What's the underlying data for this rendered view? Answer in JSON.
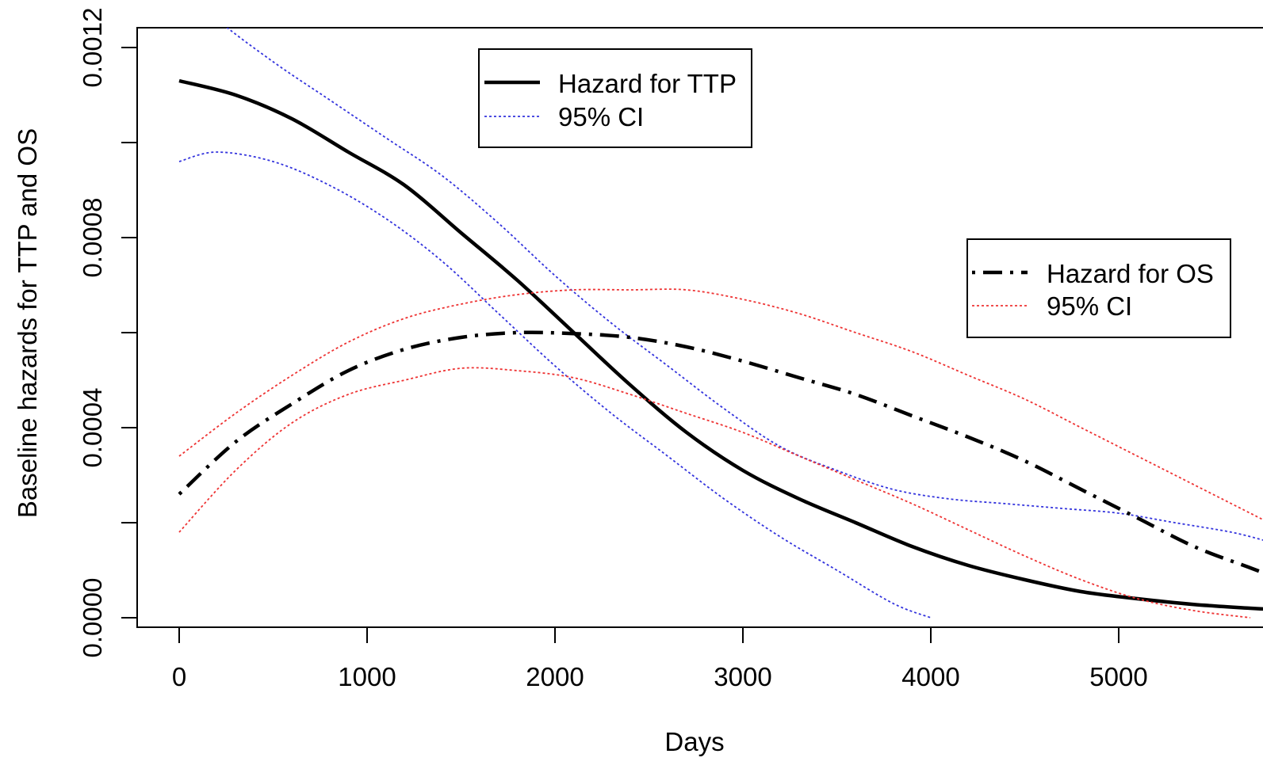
{
  "chart_data": {
    "type": "line",
    "xlabel": "Days",
    "ylabel": "Baseline hazards for TTP and OS",
    "xlim": [
      0,
      5800
    ],
    "ylim": [
      0.0,
      0.00122
    ],
    "x_ticks": [
      0,
      1000,
      2000,
      3000,
      4000,
      5000
    ],
    "x_tick_labels": [
      "0",
      "1000",
      "2000",
      "3000",
      "4000",
      "5000"
    ],
    "y_ticks": [
      0.0,
      0.0002,
      0.0004,
      0.0006,
      0.0008,
      0.001,
      0.0012
    ],
    "y_tick_labels": [
      "0.0000",
      "",
      "0.0004",
      "",
      "0.0008",
      "",
      "0.0012"
    ],
    "grid": false,
    "legends": [
      {
        "placement": "top-center",
        "entries": [
          {
            "label": "Hazard for TTP",
            "color": "#000000",
            "style": "solid"
          },
          {
            "label": "95% CI",
            "color": "#3333dd",
            "style": "dotted"
          }
        ]
      },
      {
        "placement": "right",
        "entries": [
          {
            "label": "Hazard for OS",
            "color": "#000000",
            "style": "dashdot"
          },
          {
            "label": "95% CI",
            "color": "#ee3333",
            "style": "dotted"
          }
        ]
      }
    ],
    "series": [
      {
        "key": "ttp",
        "color": "#000000",
        "style": "solid",
        "x": [
          0,
          300,
          600,
          900,
          1200,
          1500,
          1800,
          2100,
          2400,
          2700,
          3000,
          3300,
          3600,
          3900,
          4200,
          4500,
          4800,
          5100,
          5400,
          5700,
          5800
        ],
        "y": [
          0.00113,
          0.0011,
          0.00105,
          0.00098,
          0.00091,
          0.00081,
          0.00071,
          0.0006,
          0.00049,
          0.00039,
          0.00031,
          0.00025,
          0.0002,
          0.00015,
          0.00011,
          8e-05,
          5.5e-05,
          4e-05,
          2.8e-05,
          2e-05,
          1.8e-05
        ]
      },
      {
        "key": "ttp-ci-upper",
        "color": "#3333dd",
        "style": "dotted",
        "x": [
          0,
          200,
          500,
          800,
          1100,
          1400,
          1700,
          2000,
          2300,
          2600,
          2900,
          3200,
          3500,
          3800,
          4100,
          4400,
          4700,
          5000,
          5300,
          5600,
          5800
        ],
        "y": [
          0.00134,
          0.00126,
          0.00117,
          0.00109,
          0.00101,
          0.00093,
          0.00083,
          0.00072,
          0.00062,
          0.00053,
          0.00044,
          0.00036,
          0.00031,
          0.00027,
          0.00025,
          0.00024,
          0.00023,
          0.00022,
          0.0002,
          0.00018,
          0.00016
        ]
      },
      {
        "key": "ttp-ci-lower",
        "color": "#3333dd",
        "style": "dotted",
        "x": [
          0,
          200,
          500,
          800,
          1100,
          1400,
          1700,
          2000,
          2300,
          2600,
          2900,
          3200,
          3500,
          3800,
          4000
        ],
        "y": [
          0.00096,
          0.00098,
          0.00096,
          0.00091,
          0.00084,
          0.00075,
          0.00064,
          0.00053,
          0.00043,
          0.00034,
          0.00025,
          0.00017,
          0.0001,
          3e-05,
          0.0
        ]
      },
      {
        "key": "os",
        "color": "#000000",
        "style": "dashdot",
        "x": [
          0,
          300,
          600,
          900,
          1200,
          1500,
          1800,
          2100,
          2400,
          2700,
          3000,
          3300,
          3600,
          3900,
          4200,
          4500,
          4800,
          5100,
          5400,
          5700,
          5800
        ],
        "y": [
          0.00026,
          0.00037,
          0.00045,
          0.00052,
          0.000565,
          0.00059,
          0.0006,
          0.000598,
          0.00059,
          0.00057,
          0.00054,
          0.000505,
          0.00047,
          0.000425,
          0.00038,
          0.00033,
          0.00027,
          0.00021,
          0.00015,
          0.000105,
          9e-05
        ]
      },
      {
        "key": "os-ci-upper",
        "color": "#ee3333",
        "style": "dotted",
        "x": [
          0,
          300,
          600,
          900,
          1200,
          1500,
          1800,
          2100,
          2400,
          2700,
          3000,
          3300,
          3600,
          3900,
          4200,
          4500,
          4800,
          5100,
          5400,
          5700,
          5800
        ],
        "y": [
          0.00034,
          0.00043,
          0.00051,
          0.00058,
          0.00063,
          0.00066,
          0.00068,
          0.00069,
          0.00069,
          0.00069,
          0.00067,
          0.00064,
          0.0006,
          0.00056,
          0.00051,
          0.00046,
          0.0004,
          0.00034,
          0.00028,
          0.00022,
          0.0002
        ]
      },
      {
        "key": "os-ci-lower",
        "color": "#ee3333",
        "style": "dotted",
        "x": [
          0,
          300,
          600,
          900,
          1200,
          1500,
          1800,
          2100,
          2400,
          2700,
          3000,
          3300,
          3600,
          3900,
          4200,
          4500,
          4800,
          5100,
          5400,
          5700
        ],
        "y": [
          0.00018,
          0.00031,
          0.00041,
          0.00047,
          0.0005,
          0.000525,
          0.00052,
          0.000505,
          0.00047,
          0.00043,
          0.00039,
          0.00034,
          0.00029,
          0.00024,
          0.000185,
          0.00013,
          8e-05,
          4e-05,
          1.5e-05,
          0.0
        ]
      }
    ]
  }
}
